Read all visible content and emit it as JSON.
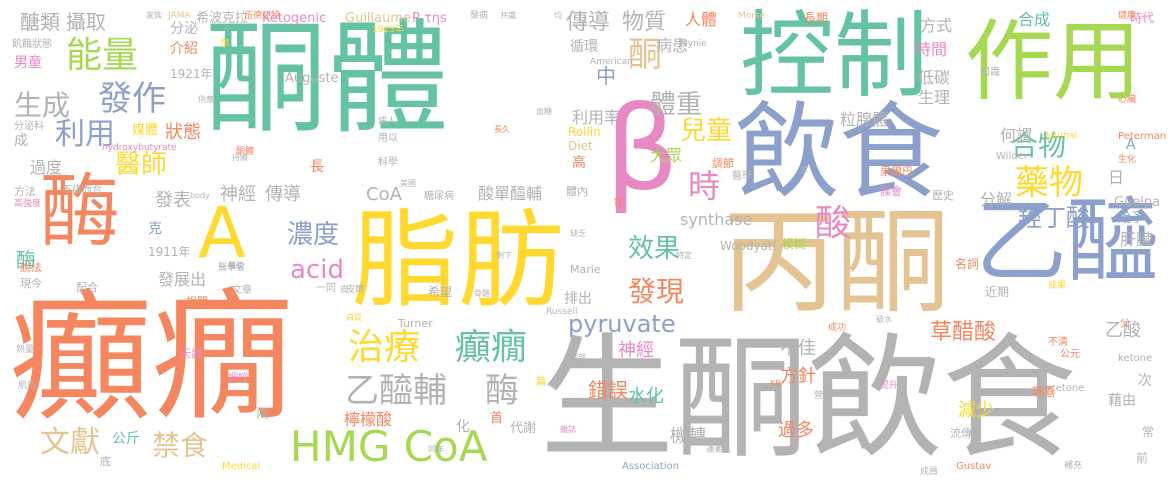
{
  "palette": {
    "orange": "#f4875f",
    "teal": "#66c2a5",
    "blue": "#8da0cb",
    "pink": "#e78ac3",
    "green": "#a6d854",
    "yellow": "#ffd92f",
    "tan": "#e5c494",
    "gray": "#b3b3b3"
  },
  "words": [
    {
      "text": "癲癇",
      "color": "orange"
    },
    {
      "text": "生酮飲食",
      "color": "gray"
    },
    {
      "text": "酮體",
      "color": "teal"
    },
    {
      "text": "丙酮",
      "color": "tan"
    },
    {
      "text": "飲食",
      "color": "blue"
    },
    {
      "text": "控制",
      "color": "teal"
    },
    {
      "text": "作用",
      "color": "green"
    },
    {
      "text": "脂肪",
      "color": "yellow"
    },
    {
      "text": "β",
      "color": "pink"
    },
    {
      "text": "乙醯",
      "color": "blue"
    },
    {
      "text": "酶",
      "color": "orange"
    },
    {
      "text": "A",
      "color": "yellow"
    },
    {
      "text": "HMG CoA",
      "color": "green"
    },
    {
      "text": "治療",
      "color": "yellow"
    },
    {
      "text": "癲癇",
      "color": "teal"
    },
    {
      "text": "乙醯輔",
      "color": "gray"
    },
    {
      "text": "酶",
      "color": "gray"
    },
    {
      "text": "能量",
      "color": "green"
    },
    {
      "text": "發作",
      "color": "blue"
    },
    {
      "text": "利用",
      "color": "blue"
    },
    {
      "text": "生成",
      "color": "gray"
    },
    {
      "text": "醫師",
      "color": "yellow"
    },
    {
      "text": "濃度",
      "color": "blue"
    },
    {
      "text": "acid",
      "color": "pink"
    },
    {
      "text": "文獻",
      "color": "tan"
    },
    {
      "text": "禁食",
      "color": "tan"
    },
    {
      "text": "pyruvate",
      "color": "blue"
    },
    {
      "text": "發現",
      "color": "orange"
    },
    {
      "text": "效果",
      "color": "teal"
    },
    {
      "text": "時",
      "color": "pink"
    },
    {
      "text": "體重",
      "color": "gray"
    },
    {
      "text": "兒童",
      "color": "yellow"
    },
    {
      "text": "酮",
      "color": "tan"
    },
    {
      "text": "酸",
      "color": "pink"
    },
    {
      "text": "藥物",
      "color": "yellow"
    },
    {
      "text": "合物",
      "color": "teal"
    },
    {
      "text": "羥丁酸",
      "color": "blue"
    },
    {
      "text": "草醋酸",
      "color": "orange"
    },
    {
      "text": "乙酸",
      "color": "gray"
    },
    {
      "text": "傳導",
      "color": "gray"
    },
    {
      "text": "物質",
      "color": "gray"
    },
    {
      "text": "攝取",
      "color": "gray"
    },
    {
      "text": "醣類",
      "color": "gray"
    },
    {
      "text": "狀態",
      "color": "orange"
    },
    {
      "text": "神經",
      "color": "gray"
    },
    {
      "text": "傳導",
      "color": "gray"
    },
    {
      "text": "CoA",
      "color": "gray"
    },
    {
      "text": "發表",
      "color": "gray"
    },
    {
      "text": "利用率",
      "color": "gray"
    },
    {
      "text": "大眾",
      "color": "green"
    },
    {
      "text": "中",
      "color": "blue"
    },
    {
      "text": "過度",
      "color": "gray"
    },
    {
      "text": "synthase",
      "color": "gray"
    },
    {
      "text": "酸單醯輔",
      "color": "gray"
    },
    {
      "text": "病患",
      "color": "gray"
    },
    {
      "text": "人體",
      "color": "orange"
    },
    {
      "text": "粒腺體",
      "color": "gray"
    },
    {
      "text": "分解",
      "color": "gray"
    },
    {
      "text": "肝臟",
      "color": "gray"
    },
    {
      "text": "何謂",
      "color": "gray"
    },
    {
      "text": "時間",
      "color": "pink"
    },
    {
      "text": "低碳",
      "color": "gray"
    },
    {
      "text": "生理",
      "color": "gray"
    },
    {
      "text": "合成",
      "color": "teal"
    },
    {
      "text": "方式",
      "color": "gray"
    },
    {
      "text": "介紹",
      "color": "orange"
    },
    {
      "text": "分泌",
      "color": "gray"
    },
    {
      "text": "男童",
      "color": "pink"
    },
    {
      "text": "酶",
      "color": "teal"
    },
    {
      "text": "錯誤",
      "color": "orange"
    },
    {
      "text": "減少",
      "color": "yellow"
    },
    {
      "text": "過多",
      "color": "orange"
    },
    {
      "text": "機轉",
      "color": "gray"
    },
    {
      "text": "檸檬酸",
      "color": "orange"
    },
    {
      "text": "水化",
      "color": "teal"
    },
    {
      "text": "神經",
      "color": "pink"
    },
    {
      "text": "方針",
      "color": "orange"
    },
    {
      "text": "不佳",
      "color": "gray"
    },
    {
      "text": "公斤",
      "color": "teal"
    },
    {
      "text": "發展出",
      "color": "gray"
    },
    {
      "text": "Guillaume",
      "color": "tan"
    },
    {
      "text": "Ketogenic",
      "color": "pink"
    },
    {
      "text": "希波克拉",
      "color": "gray"
    },
    {
      "text": "Auguste",
      "color": "gray"
    },
    {
      "text": "Woodyatt",
      "color": "gray"
    },
    {
      "text": "Rollin",
      "color": "yellow"
    },
    {
      "text": "Diet",
      "color": "tan"
    },
    {
      "text": "Turner",
      "color": "gray"
    },
    {
      "text": "Marie",
      "color": "gray"
    },
    {
      "text": "acetone",
      "color": "gray"
    },
    {
      "text": "ketone",
      "color": "gray"
    },
    {
      "text": "1921年",
      "color": "gray"
    },
    {
      "text": "1911年",
      "color": "gray"
    },
    {
      "text": "1925年",
      "color": "yellow"
    },
    {
      "text": "hydroxybutyrate",
      "color": "pink"
    },
    {
      "text": "Guelpa",
      "color": "gray"
    },
    {
      "text": "給予",
      "color": "blue"
    },
    {
      "text": "循環",
      "color": "gray"
    },
    {
      "text": "代謝",
      "color": "gray"
    },
    {
      "text": "首",
      "color": "orange"
    },
    {
      "text": "兩",
      "color": "gray"
    },
    {
      "text": "克",
      "color": "blue"
    },
    {
      "text": "長",
      "color": "orange"
    },
    {
      "text": "高",
      "color": "orange"
    },
    {
      "text": "次",
      "color": "gray"
    },
    {
      "text": "藉由",
      "color": "gray"
    },
    {
      "text": "瑪喜",
      "color": "orange"
    },
    {
      "text": "近期",
      "color": "gray"
    },
    {
      "text": "名詞",
      "color": "orange"
    },
    {
      "text": "模糊",
      "color": "green"
    },
    {
      "text": "長期",
      "color": "orange"
    },
    {
      "text": "時代",
      "color": "pink"
    },
    {
      "text": "常",
      "color": "gray"
    },
    {
      "text": "前",
      "color": "gray"
    },
    {
      "text": "說法",
      "color": "orange"
    },
    {
      "text": "現今",
      "color": "gray"
    },
    {
      "text": "配合",
      "color": "gray"
    },
    {
      "text": "相關",
      "color": "orange"
    },
    {
      "text": "天譴",
      "color": "pink"
    },
    {
      "text": "熱量",
      "color": "gray"
    },
    {
      "text": "肌肉",
      "color": "gray"
    },
    {
      "text": "成",
      "color": "gray"
    },
    {
      "text": "方法",
      "color": "gray"
    },
    {
      "text": "高強度",
      "color": "pink"
    },
    {
      "text": "飢餓狀態",
      "color": "gray"
    },
    {
      "text": "分泌料",
      "color": "gray"
    },
    {
      "text": "早",
      "color": "yellow"
    },
    {
      "text": "伍德亞特",
      "color": "orange"
    },
    {
      "text": "一同",
      "color": "gray"
    },
    {
      "text": "皮爾",
      "color": "gray"
    },
    {
      "text": "希望",
      "color": "gray"
    },
    {
      "text": "排出",
      "color": "gray"
    },
    {
      "text": "化",
      "color": "gray"
    },
    {
      "text": "文章",
      "color": "gray"
    },
    {
      "text": "醫學會",
      "color": "gray"
    },
    {
      "text": "科學",
      "color": "gray"
    },
    {
      "text": "用以",
      "color": "gray"
    },
    {
      "text": "病人",
      "color": "gray"
    },
    {
      "text": "糖尿病",
      "color": "gray"
    },
    {
      "text": "體內",
      "color": "gray"
    },
    {
      "text": "醫學",
      "color": "gray"
    },
    {
      "text": "果爾巴",
      "color": "orange"
    },
    {
      "text": "誤會",
      "color": "pink"
    },
    {
      "text": "歷史",
      "color": "gray"
    },
    {
      "text": "調節",
      "color": "orange"
    },
    {
      "text": "流傳",
      "color": "gray"
    },
    {
      "text": "Gustav",
      "color": "orange"
    },
    {
      "text": "Association",
      "color": "blue"
    },
    {
      "text": "Medical",
      "color": "yellow"
    },
    {
      "text": "American",
      "color": "gray"
    },
    {
      "text": "Peterman",
      "color": "orange"
    },
    {
      "text": "Wilder",
      "color": "gray"
    },
    {
      "text": "Journal",
      "color": "yellow"
    },
    {
      "text": "JAMA",
      "color": "tan"
    },
    {
      "text": "知識",
      "color": "gray"
    },
    {
      "text": "心臟",
      "color": "orange"
    },
    {
      "text": "生化",
      "color": "orange"
    },
    {
      "text": "健康",
      "color": "orange"
    },
    {
      "text": "Morse",
      "color": "tan"
    },
    {
      "text": "Mynie",
      "color": "gray"
    },
    {
      "text": "Russell",
      "color": "gray"
    },
    {
      "text": "不清",
      "color": "orange"
    },
    {
      "text": "成果",
      "color": "yellow"
    },
    {
      "text": "成員",
      "color": "gray"
    },
    {
      "text": "成功",
      "color": "orange"
    },
    {
      "text": "運動",
      "color": "gray"
    },
    {
      "text": "營養",
      "color": "gray"
    },
    {
      "text": "雜誌",
      "color": "pink"
    },
    {
      "text": "腦部",
      "color": "gray"
    },
    {
      "text": "骨骼",
      "color": "gray"
    },
    {
      "text": "缺乏",
      "color": "gray"
    },
    {
      "text": "白質",
      "color": "yellow"
    },
    {
      "text": "剩下",
      "color": "gray"
    },
    {
      "text": "特定",
      "color": "gray"
    },
    {
      "text": "血糖",
      "color": "gray"
    },
    {
      "text": "長久",
      "color": "orange"
    },
    {
      "text": "供應",
      "color": "gray"
    },
    {
      "text": "媒體",
      "color": "yellow"
    },
    {
      "text": "酮體",
      "color": "orange"
    },
    {
      "text": "不謀而合",
      "color": "gray"
    },
    {
      "text": "持續",
      "color": "gray"
    },
    {
      "text": "家族",
      "color": "gray"
    },
    {
      "text": "發病",
      "color": "gray"
    },
    {
      "text": "共識",
      "color": "gray"
    },
    {
      "text": "破水",
      "color": "gray"
    },
    {
      "text": "調控",
      "color": "pink"
    },
    {
      "text": "P τηs",
      "color": "pink"
    },
    {
      "text": "π",
      "color": "orange"
    },
    {
      "text": "日",
      "color": "gray"
    },
    {
      "text": "A",
      "color": "blue"
    },
    {
      "text": "父",
      "color": "orange"
    },
    {
      "text": "補充",
      "color": "gray"
    },
    {
      "text": "提升",
      "color": "pink"
    },
    {
      "text": "同年",
      "color": "gray"
    },
    {
      "text": "均",
      "color": "gray"
    },
    {
      "text": "底",
      "color": "gray"
    },
    {
      "text": "公元",
      "color": "orange"
    },
    {
      "text": "篇",
      "color": "yellow"
    },
    {
      "text": "KB",
      "color": "orange"
    },
    {
      "text": "K",
      "color": "gray"
    },
    {
      "text": "body",
      "color": "gray"
    },
    {
      "text": "美國",
      "color": "gray"
    },
    {
      "text": "醫院",
      "color": "gray"
    },
    {
      "text": "皮",
      "color": "gray"
    }
  ]
}
